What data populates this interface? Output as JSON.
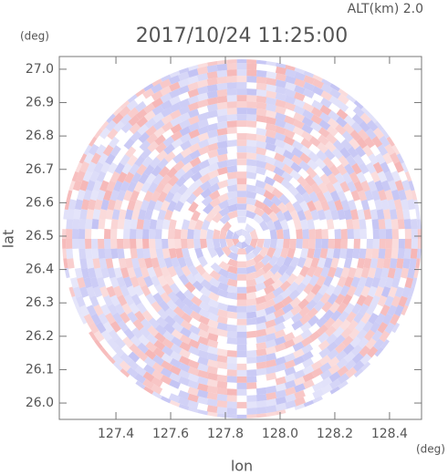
{
  "chart_data": {
    "type": "radar-image",
    "title": "2017/10/24 11:25:00",
    "annotation": "ALT(km) 2.0",
    "x_label": "lon",
    "y_label": "lat",
    "x_unit": "(deg)",
    "y_unit": "(deg)",
    "xlim": [
      127.193,
      128.517
    ],
    "ylim": [
      25.951,
      27.038
    ],
    "xticks": [
      127.4,
      127.6,
      127.8,
      {
        "value": 128.0,
        "label": "128.0"
      },
      128.2,
      128.4
    ],
    "yticks": [
      {
        "value": 26.0,
        "label": "26.0"
      },
      26.1,
      26.2,
      26.3,
      26.4,
      26.5,
      26.6,
      26.7,
      26.8,
      26.9,
      {
        "value": 27.0,
        "label": "27.0"
      }
    ]
  }
}
